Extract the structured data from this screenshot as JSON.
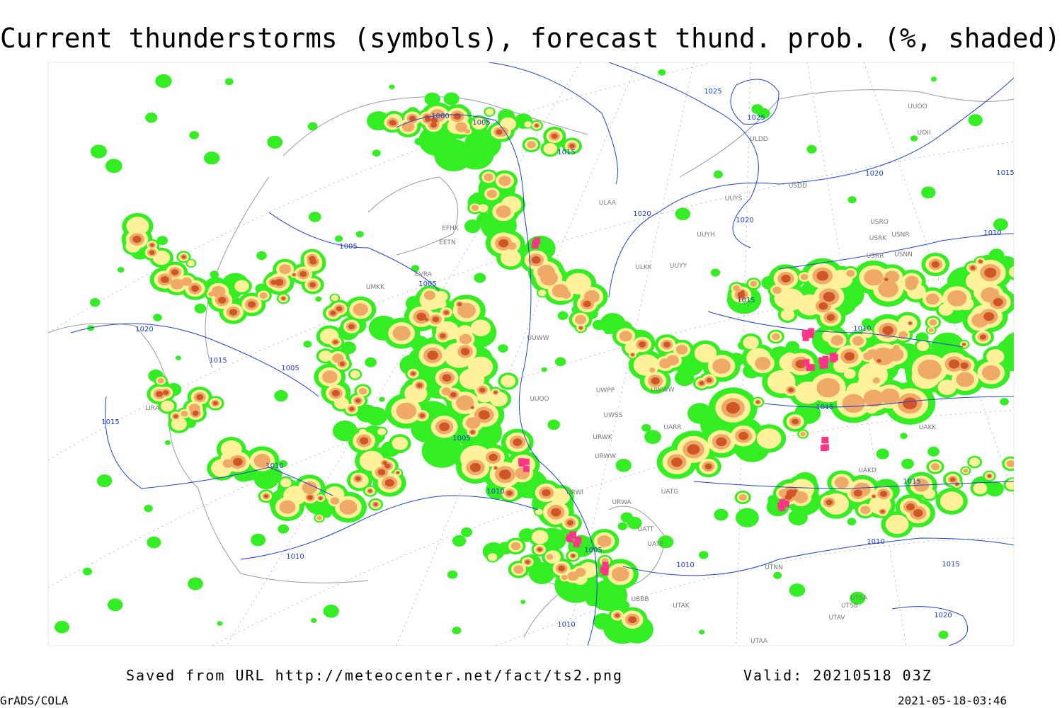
{
  "header": {
    "title": "Current thunderstorms (symbols), forecast thund. prob. (%, shaded)"
  },
  "footer": {
    "source": "Saved from URL http://meteocenter.net/fact/ts2.png",
    "valid": "Valid: 20210518 03Z",
    "software": "GrADS/COLA",
    "timestamp": "2021-05-18-03:46"
  },
  "map": {
    "isobar_labels": [
      "1000",
      "1005",
      "1015",
      "1025",
      "1025",
      "1020",
      "1020",
      "1020",
      "1015",
      "1010",
      "1005",
      "1005",
      "1020",
      "1015",
      "1005",
      "1015",
      "1010",
      "1005",
      "1010",
      "1015",
      "1010",
      "1015",
      "1015",
      "1010",
      "1010",
      "1005",
      "1010",
      "1015",
      "1020",
      "1010"
    ],
    "station_labels": [
      "ULAA",
      "ULDD",
      "USDD",
      "UUYS",
      "UUYH",
      "ULKK",
      "UUYY",
      "UUOO",
      "UOII",
      "USRO",
      "USRK",
      "USNR",
      "USRR",
      "USNN",
      "UUWW",
      "UUOO",
      "UWPP",
      "UWWW",
      "UWSS",
      "UARR",
      "URWK",
      "URWW",
      "URWI",
      "UATG",
      "URWA",
      "UATT",
      "UATE",
      "UTAK",
      "UBBB",
      "UTNN",
      "UAKD",
      "UAKK",
      "UTSA",
      "UTSB",
      "UTAV",
      "UTAA",
      "EFHK",
      "EETN",
      "EVRA",
      "UMKK",
      "LIRA"
    ]
  }
}
